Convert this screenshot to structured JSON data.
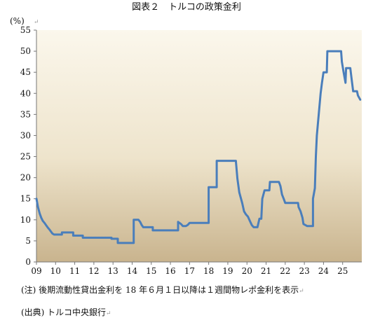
{
  "chart_data": {
    "type": "line",
    "title": "図表２　トルコの政策金利",
    "ylabel": "(%)",
    "xlabel": "",
    "ylim": [
      0,
      55
    ],
    "xlim": [
      2009,
      2026
    ],
    "yticks": [
      0,
      5,
      10,
      15,
      20,
      25,
      30,
      35,
      40,
      45,
      50,
      55
    ],
    "xticks": [
      {
        "x": 2009,
        "label": "09"
      },
      {
        "x": 2010,
        "label": "10"
      },
      {
        "x": 2011,
        "label": "11"
      },
      {
        "x": 2012,
        "label": "12"
      },
      {
        "x": 2013,
        "label": "13"
      },
      {
        "x": 2014,
        "label": "14"
      },
      {
        "x": 2015,
        "label": "15"
      },
      {
        "x": 2016,
        "label": "16"
      },
      {
        "x": 2017,
        "label": "17"
      },
      {
        "x": 2018,
        "label": "18"
      },
      {
        "x": 2019,
        "label": "19"
      },
      {
        "x": 2020,
        "label": "20"
      },
      {
        "x": 2021,
        "label": "21"
      },
      {
        "x": 2022,
        "label": "22"
      },
      {
        "x": 2023,
        "label": "23"
      },
      {
        "x": 2024,
        "label": "24"
      },
      {
        "x": 2025,
        "label": "25"
      }
    ],
    "grid": false,
    "series": [
      {
        "color": "#4a7ebb",
        "points": [
          [
            2009.0,
            15.0
          ],
          [
            2009.08,
            13.0
          ],
          [
            2009.17,
            11.5
          ],
          [
            2009.25,
            10.5
          ],
          [
            2009.33,
            9.75
          ],
          [
            2009.42,
            9.25
          ],
          [
            2009.5,
            8.75
          ],
          [
            2009.58,
            8.25
          ],
          [
            2009.67,
            7.75
          ],
          [
            2009.75,
            7.25
          ],
          [
            2009.83,
            6.75
          ],
          [
            2009.92,
            6.5
          ],
          [
            2010.33,
            6.5
          ],
          [
            2010.33,
            7.0
          ],
          [
            2010.92,
            7.0
          ],
          [
            2010.92,
            6.25
          ],
          [
            2011.42,
            6.25
          ],
          [
            2011.42,
            5.75
          ],
          [
            2012.92,
            5.75
          ],
          [
            2012.92,
            5.5
          ],
          [
            2013.25,
            5.5
          ],
          [
            2013.25,
            4.5
          ],
          [
            2014.08,
            4.5
          ],
          [
            2014.08,
            10.0
          ],
          [
            2014.33,
            10.0
          ],
          [
            2014.42,
            9.5
          ],
          [
            2014.5,
            8.75
          ],
          [
            2014.58,
            8.25
          ],
          [
            2015.08,
            8.25
          ],
          [
            2015.08,
            7.5
          ],
          [
            2016.4,
            7.5
          ],
          [
            2016.4,
            9.5
          ],
          [
            2016.55,
            9.0
          ],
          [
            2016.65,
            8.5
          ],
          [
            2016.8,
            8.5
          ],
          [
            2016.9,
            8.75
          ],
          [
            2017.0,
            9.25
          ],
          [
            2018.0,
            9.25
          ],
          [
            2018.0,
            17.75
          ],
          [
            2018.42,
            17.75
          ],
          [
            2018.42,
            24.0
          ],
          [
            2019.42,
            24.0
          ],
          [
            2019.5,
            19.75
          ],
          [
            2019.6,
            16.5
          ],
          [
            2019.75,
            14.0
          ],
          [
            2019.85,
            12.0
          ],
          [
            2019.95,
            11.25
          ],
          [
            2020.05,
            10.75
          ],
          [
            2020.15,
            9.75
          ],
          [
            2020.25,
            8.75
          ],
          [
            2020.35,
            8.25
          ],
          [
            2020.55,
            8.25
          ],
          [
            2020.65,
            10.25
          ],
          [
            2020.75,
            10.25
          ],
          [
            2020.8,
            15.0
          ],
          [
            2020.92,
            17.0
          ],
          [
            2021.17,
            17.0
          ],
          [
            2021.2,
            19.0
          ],
          [
            2021.67,
            19.0
          ],
          [
            2021.75,
            18.0
          ],
          [
            2021.83,
            16.0
          ],
          [
            2021.92,
            15.0
          ],
          [
            2022.0,
            14.0
          ],
          [
            2022.67,
            14.0
          ],
          [
            2022.7,
            13.0
          ],
          [
            2022.8,
            12.0
          ],
          [
            2022.9,
            10.5
          ],
          [
            2022.95,
            9.0
          ],
          [
            2023.15,
            8.5
          ],
          [
            2023.45,
            8.5
          ],
          [
            2023.45,
            15.0
          ],
          [
            2023.55,
            17.5
          ],
          [
            2023.6,
            25.0
          ],
          [
            2023.65,
            30.0
          ],
          [
            2023.75,
            35.0
          ],
          [
            2023.85,
            40.0
          ],
          [
            2023.92,
            42.5
          ],
          [
            2024.0,
            45.0
          ],
          [
            2024.17,
            45.0
          ],
          [
            2024.2,
            50.0
          ],
          [
            2024.92,
            50.0
          ],
          [
            2024.96,
            47.5
          ],
          [
            2025.05,
            45.0
          ],
          [
            2025.15,
            42.5
          ],
          [
            2025.18,
            46.0
          ],
          [
            2025.4,
            46.0
          ],
          [
            2025.48,
            43.0
          ],
          [
            2025.55,
            40.5
          ],
          [
            2025.75,
            40.5
          ],
          [
            2025.8,
            39.5
          ],
          [
            2025.92,
            38.5
          ]
        ]
      }
    ]
  },
  "notes": {
    "note1": "(注) 後期流動性貸出金利を 18 年６月１日以降は１週間物レポ金利を表示",
    "note2": "(出典) トルコ中央銀行"
  }
}
